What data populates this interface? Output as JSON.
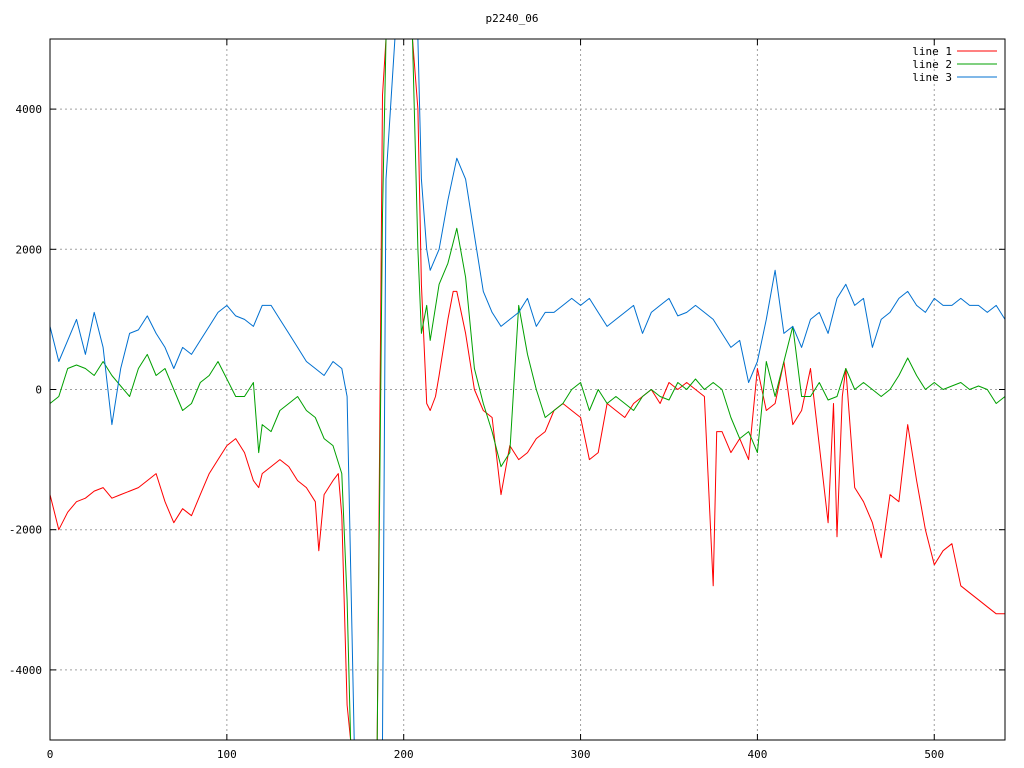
{
  "chart_data": {
    "type": "line",
    "title": "p2240_06",
    "xlabel": "",
    "ylabel": "",
    "xlim": [
      0,
      540
    ],
    "ylim": [
      -5000,
      5000
    ],
    "x_ticks": [
      0,
      100,
      200,
      300,
      400,
      500
    ],
    "y_ticks": [
      -4000,
      -2000,
      0,
      2000,
      4000
    ],
    "y_tick_labels": [
      "-4000",
      "-2000",
      "0",
      "2000",
      "4000"
    ],
    "grid": true,
    "legend_position": "top-right",
    "series": [
      {
        "name": "line 1",
        "color": "#ff0000",
        "x": [
          0,
          5,
          10,
          15,
          20,
          25,
          30,
          35,
          40,
          45,
          50,
          55,
          60,
          65,
          70,
          75,
          80,
          85,
          90,
          95,
          100,
          105,
          110,
          115,
          118,
          120,
          125,
          130,
          135,
          140,
          145,
          150,
          152,
          155,
          160,
          163,
          165,
          168,
          170,
          172,
          175,
          180,
          185,
          188,
          190,
          195,
          200,
          205,
          208,
          210,
          213,
          215,
          218,
          220,
          225,
          228,
          230,
          235,
          240,
          245,
          250,
          255,
          260,
          265,
          270,
          275,
          280,
          285,
          290,
          295,
          300,
          305,
          310,
          315,
          320,
          325,
          330,
          335,
          340,
          345,
          350,
          355,
          360,
          365,
          370,
          375,
          377,
          380,
          385,
          390,
          395,
          400,
          405,
          410,
          415,
          420,
          425,
          430,
          435,
          440,
          443,
          445,
          448,
          450,
          455,
          460,
          465,
          470,
          475,
          480,
          485,
          490,
          495,
          500,
          505,
          510,
          515,
          520,
          525,
          530,
          535,
          540
        ],
        "y": [
          -1500,
          -2000,
          -1750,
          -1600,
          -1550,
          -1450,
          -1400,
          -1550,
          -1500,
          -1450,
          -1400,
          -1300,
          -1200,
          -1600,
          -1900,
          -1700,
          -1800,
          -1500,
          -1200,
          -1000,
          -800,
          -700,
          -900,
          -1300,
          -1400,
          -1200,
          -1100,
          -1000,
          -1100,
          -1300,
          -1400,
          -1600,
          -2300,
          -1500,
          -1300,
          -1200,
          -1800,
          -4500,
          -5000,
          -5000,
          -5000,
          -5000,
          -5000,
          4200,
          5000,
          5000,
          5000,
          5000,
          4000,
          1500,
          -200,
          -300,
          -100,
          200,
          1000,
          1400,
          1400,
          800,
          0,
          -300,
          -400,
          -1500,
          -800,
          -1000,
          -900,
          -700,
          -600,
          -300,
          -200,
          -300,
          -400,
          -1000,
          -900,
          -200,
          -300,
          -400,
          -200,
          -100,
          0,
          -200,
          100,
          0,
          100,
          0,
          -100,
          -2800,
          -600,
          -600,
          -900,
          -700,
          -1000,
          300,
          -300,
          -200,
          400,
          -500,
          -300,
          300,
          -800,
          -1900,
          -200,
          -2100,
          -100,
          300,
          -1400,
          -1600,
          -1900,
          -2400,
          -1500,
          -1600,
          -500,
          -1300,
          -2000,
          -2500,
          -2300,
          -2200,
          -2800,
          -2900,
          -3000,
          -3100,
          -3200,
          -3200
        ]
      },
      {
        "name": "line 2",
        "color": "#00a000",
        "x": [
          0,
          5,
          10,
          15,
          20,
          25,
          30,
          35,
          40,
          45,
          50,
          55,
          60,
          65,
          70,
          75,
          80,
          85,
          90,
          95,
          100,
          105,
          110,
          115,
          118,
          120,
          125,
          130,
          135,
          140,
          145,
          150,
          155,
          160,
          165,
          168,
          170,
          172,
          175,
          180,
          185,
          188,
          190,
          195,
          200,
          205,
          208,
          210,
          213,
          215,
          220,
          225,
          230,
          235,
          240,
          245,
          250,
          255,
          260,
          265,
          270,
          275,
          280,
          285,
          290,
          295,
          300,
          305,
          310,
          315,
          320,
          325,
          330,
          335,
          340,
          345,
          350,
          355,
          360,
          365,
          370,
          375,
          380,
          385,
          390,
          395,
          400,
          405,
          410,
          415,
          420,
          425,
          430,
          435,
          440,
          445,
          450,
          455,
          460,
          465,
          470,
          475,
          480,
          485,
          490,
          495,
          500,
          505,
          510,
          515,
          520,
          525,
          530,
          535,
          540
        ],
        "y": [
          -200,
          -100,
          300,
          350,
          300,
          200,
          400,
          200,
          50,
          -100,
          300,
          500,
          200,
          300,
          0,
          -300,
          -200,
          100,
          200,
          400,
          150,
          -100,
          -100,
          100,
          -900,
          -500,
          -600,
          -300,
          -200,
          -100,
          -300,
          -400,
          -700,
          -800,
          -1200,
          -3000,
          -5000,
          -5000,
          -5000,
          -5000,
          -5000,
          2500,
          5000,
          5000,
          5000,
          5000,
          2000,
          800,
          1200,
          700,
          1500,
          1800,
          2300,
          1600,
          300,
          -200,
          -600,
          -1100,
          -900,
          1200,
          500,
          0,
          -400,
          -300,
          -200,
          0,
          100,
          -300,
          0,
          -200,
          -100,
          -200,
          -300,
          -100,
          0,
          -100,
          -150,
          100,
          0,
          150,
          0,
          100,
          0,
          -400,
          -700,
          -600,
          -900,
          400,
          -100,
          400,
          900,
          -100,
          -100,
          100,
          -150,
          -100,
          300,
          0,
          100,
          0,
          -100,
          0,
          200,
          450,
          200,
          0,
          100,
          0,
          50,
          100,
          0,
          50,
          0,
          -200,
          -100
        ],
        "y_note": ""
      },
      {
        "name": "line 3",
        "color": "#0070d0",
        "x": [
          0,
          5,
          10,
          15,
          20,
          25,
          30,
          35,
          40,
          45,
          50,
          55,
          60,
          65,
          70,
          75,
          80,
          85,
          90,
          95,
          100,
          105,
          110,
          115,
          120,
          125,
          130,
          135,
          140,
          145,
          150,
          155,
          160,
          165,
          168,
          170,
          172,
          175,
          180,
          185,
          188,
          190,
          195,
          200,
          205,
          208,
          210,
          213,
          215,
          220,
          225,
          230,
          235,
          240,
          245,
          250,
          255,
          260,
          265,
          270,
          275,
          280,
          285,
          290,
          295,
          300,
          305,
          310,
          315,
          320,
          325,
          330,
          335,
          340,
          345,
          350,
          355,
          360,
          365,
          370,
          375,
          380,
          385,
          390,
          395,
          400,
          405,
          410,
          415,
          420,
          425,
          430,
          435,
          440,
          445,
          450,
          455,
          460,
          465,
          470,
          475,
          480,
          485,
          490,
          495,
          500,
          505,
          510,
          515,
          520,
          525,
          530,
          535,
          540
        ],
        "y": [
          900,
          400,
          700,
          1000,
          500,
          1100,
          600,
          -500,
          300,
          800,
          850,
          1050,
          800,
          600,
          300,
          600,
          500,
          700,
          900,
          1100,
          1200,
          1050,
          1000,
          900,
          1200,
          1200,
          1000,
          800,
          600,
          400,
          300,
          200,
          400,
          300,
          -100,
          -2500,
          -5000,
          -5000,
          -5000,
          -5000,
          -5000,
          3000,
          5000,
          5000,
          5000,
          5000,
          3000,
          2000,
          1700,
          2000,
          2700,
          3300,
          3000,
          2200,
          1400,
          1100,
          900,
          1000,
          1100,
          1300,
          900,
          1100,
          1100,
          1200,
          1300,
          1200,
          1300,
          1100,
          900,
          1000,
          1100,
          1200,
          800,
          1100,
          1200,
          1300,
          1050,
          1100,
          1200,
          1100,
          1000,
          800,
          600,
          700,
          100,
          400,
          1000,
          1700,
          800,
          900,
          600,
          1000,
          1100,
          800,
          1300,
          1500,
          1200,
          1300,
          600,
          1000,
          1100,
          1300,
          1400,
          1200,
          1100,
          1300,
          1200,
          1200,
          1300,
          1200,
          1200,
          1100,
          1200,
          1000
        ]
      }
    ]
  }
}
